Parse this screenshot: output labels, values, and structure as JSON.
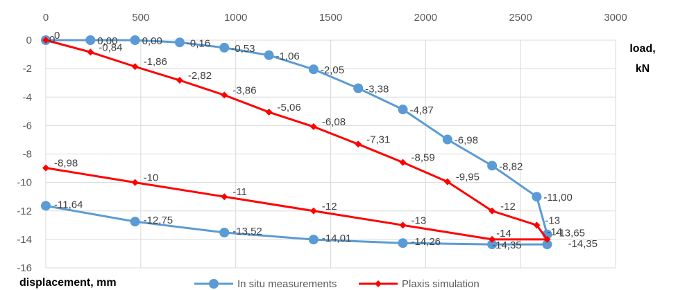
{
  "chart_data": {
    "type": "line",
    "xlabel": "load, kN",
    "ylabel": "displacement, mm",
    "xlim": [
      0,
      3000
    ],
    "ylim": [
      -16,
      0
    ],
    "x_ticks": [
      "0",
      "500",
      "1000",
      "1500",
      "2000",
      "2500",
      "3000"
    ],
    "y_ticks": [
      "0",
      "-2",
      "-4",
      "-6",
      "-8",
      "-10",
      "-12",
      "-14",
      "-16"
    ],
    "x_axis_position": "top",
    "grid": true,
    "legend_position": "bottom",
    "series": [
      {
        "name": "In situ measurements",
        "color": "#5B9BD5",
        "marker": "circle",
        "points": [
          {
            "x": 0,
            "y": 0,
            "label": "0"
          },
          {
            "x": 235,
            "y": 0,
            "label": "0,00"
          },
          {
            "x": 470,
            "y": 0,
            "label": "0,00"
          },
          {
            "x": 705,
            "y": -0.16,
            "label": "-0,16"
          },
          {
            "x": 940,
            "y": -0.53,
            "label": "-0,53"
          },
          {
            "x": 1175,
            "y": -1.06,
            "label": "-1,06"
          },
          {
            "x": 1410,
            "y": -2.05,
            "label": "-2,05"
          },
          {
            "x": 1645,
            "y": -3.38,
            "label": "-3,38"
          },
          {
            "x": 1880,
            "y": -4.87,
            "label": "-4,87"
          },
          {
            "x": 2115,
            "y": -6.98,
            "label": "-6,98"
          },
          {
            "x": 2350,
            "y": -8.82,
            "label": "-8,82"
          },
          {
            "x": 2585,
            "y": -11.0,
            "label": "-11,00"
          },
          {
            "x": 2640,
            "y": -13.65,
            "label": "-13,65"
          },
          {
            "x": 2640,
            "y": -14.35,
            "label": "-14,35"
          },
          {
            "x": 2350,
            "y": -14.35,
            "label": "-14,35"
          },
          {
            "x": 1880,
            "y": -14.26,
            "label": "-14,26"
          },
          {
            "x": 1410,
            "y": -14.01,
            "label": "-14,01"
          },
          {
            "x": 940,
            "y": -13.52,
            "label": "-13,52"
          },
          {
            "x": 470,
            "y": -12.75,
            "label": "-12,75"
          },
          {
            "x": 0,
            "y": -11.64,
            "label": "-11,64"
          }
        ]
      },
      {
        "name": "Plaxis simulation",
        "color": "#FF0000",
        "marker": "diamond",
        "points": [
          {
            "x": 0,
            "y": 0,
            "label": "0"
          },
          {
            "x": 235,
            "y": -0.84,
            "label": "-0,84"
          },
          {
            "x": 470,
            "y": -1.86,
            "label": "-1,86"
          },
          {
            "x": 705,
            "y": -2.82,
            "label": "-2,82"
          },
          {
            "x": 940,
            "y": -3.86,
            "label": "-3,86"
          },
          {
            "x": 1175,
            "y": -5.06,
            "label": "-5,06"
          },
          {
            "x": 1410,
            "y": -6.08,
            "label": "-6,08"
          },
          {
            "x": 1645,
            "y": -7.31,
            "label": "-7,31"
          },
          {
            "x": 1880,
            "y": -8.59,
            "label": "-8,59"
          },
          {
            "x": 2115,
            "y": -9.95,
            "label": "-9,95"
          },
          {
            "x": 2350,
            "y": -12,
            "label": "-12"
          },
          {
            "x": 2585,
            "y": -13,
            "label": "-13"
          },
          {
            "x": 2640,
            "y": -14,
            "label": "-14"
          },
          {
            "x": 2350,
            "y": -14,
            "label": "-14"
          },
          {
            "x": 1880,
            "y": -13,
            "label": "-13"
          },
          {
            "x": 1410,
            "y": -12,
            "label": "-12"
          },
          {
            "x": 940,
            "y": -11,
            "label": "-11"
          },
          {
            "x": 470,
            "y": -10,
            "label": "-10"
          },
          {
            "x": 0,
            "y": -8.98,
            "label": "-8,98"
          }
        ]
      }
    ]
  }
}
